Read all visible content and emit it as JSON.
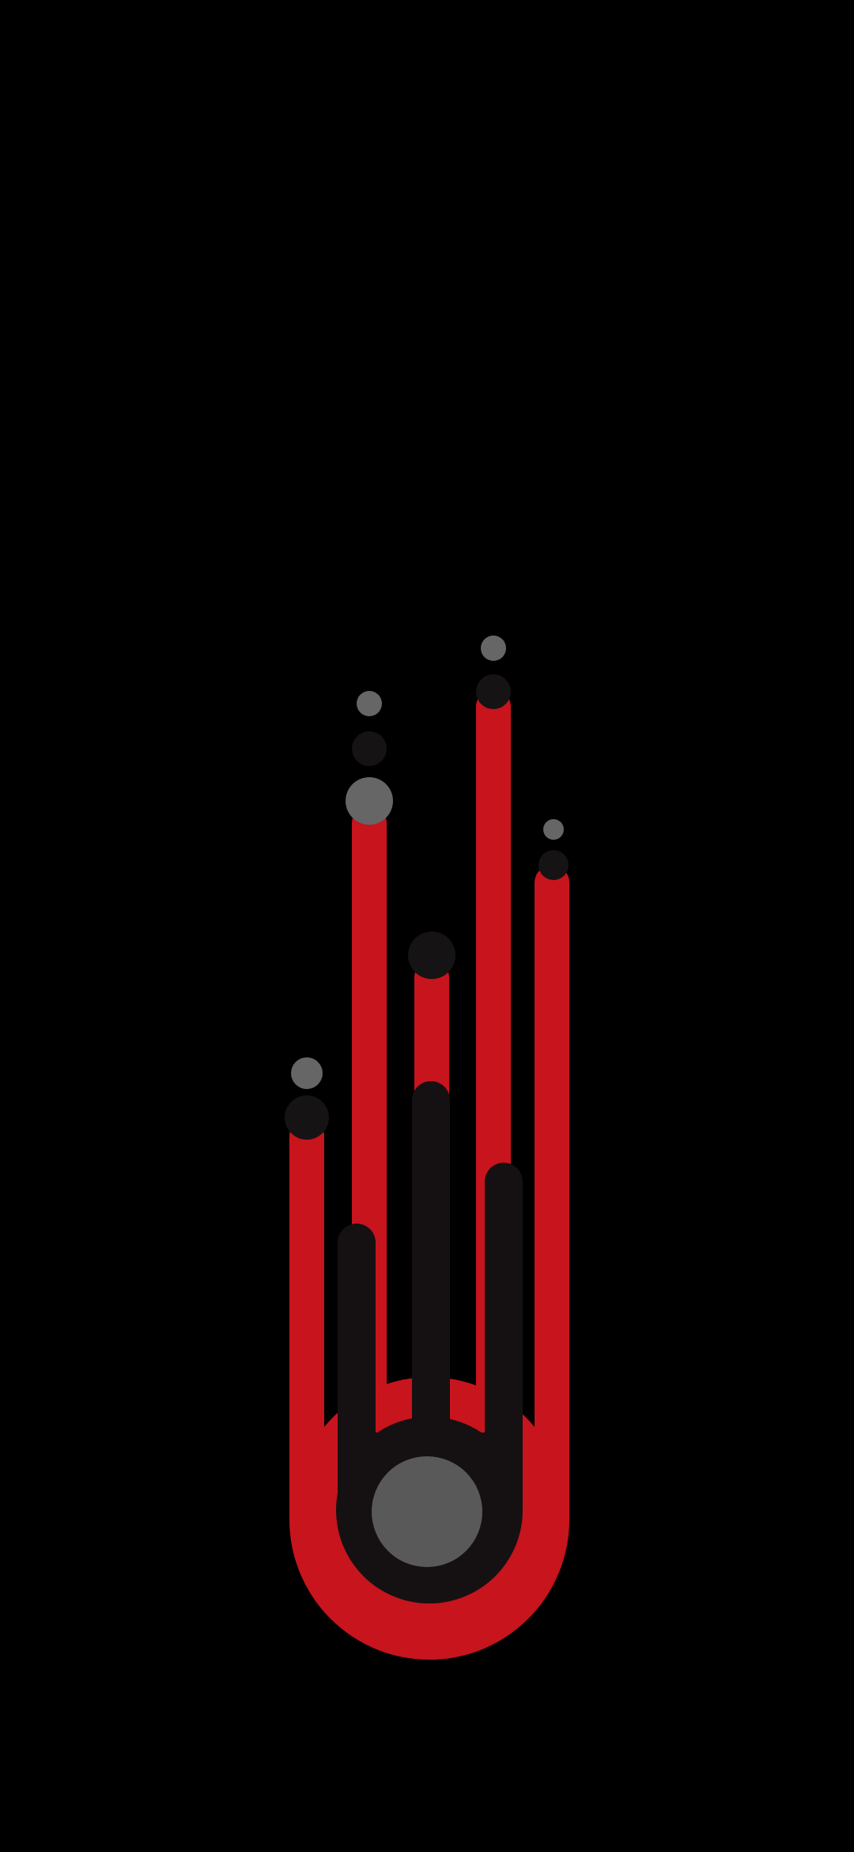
{
  "screen": {
    "type": "wallpaper",
    "description_shown": ""
  },
  "artwork": {
    "subject": "comet",
    "icons": [
      "comet-icon"
    ],
    "colors": {
      "background": "#000000",
      "trail_red": "#c8141d",
      "trail_dark": "#151112",
      "orb_gray": "#595959",
      "orb_gray_light": "#666666",
      "orb_dark": "#161314"
    }
  }
}
